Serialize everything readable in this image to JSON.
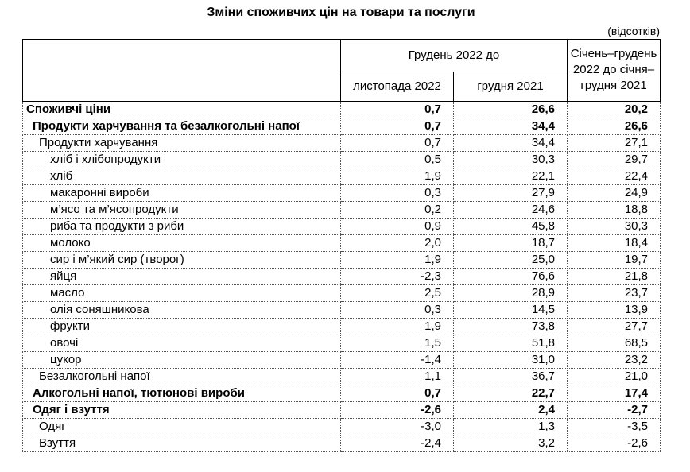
{
  "title": "Зміни споживчих цін на товари та послуги",
  "unit_note": "(відсотків)",
  "table": {
    "header": {
      "group": "Грудень 2022 до",
      "sub1": "листопада 2022",
      "sub2": "грудня 2021",
      "period": "Січень–грудень 2022 до січня–грудня 2021"
    },
    "rows": [
      {
        "label": "Споживчі ціни",
        "indent": 0,
        "bold": true,
        "values": [
          "0,7",
          "26,6",
          "20,2"
        ]
      },
      {
        "label": "Продукти харчування та безалкогольні напої",
        "indent": 1,
        "bold": true,
        "values": [
          "0,7",
          "34,4",
          "26,6"
        ]
      },
      {
        "label": "Продукти харчування",
        "indent": 2,
        "bold": false,
        "values": [
          "0,7",
          "34,4",
          "27,1"
        ]
      },
      {
        "label": "хліб і хлібопродукти",
        "indent": 3,
        "bold": false,
        "values": [
          "0,5",
          "30,3",
          "29,7"
        ]
      },
      {
        "label": "хліб",
        "indent": 3,
        "bold": false,
        "values": [
          "1,9",
          "22,1",
          "22,4"
        ]
      },
      {
        "label": "макаронні вироби",
        "indent": 3,
        "bold": false,
        "values": [
          "0,3",
          "27,9",
          "24,9"
        ]
      },
      {
        "label": "м’ясо та м’ясопродукти",
        "indent": 3,
        "bold": false,
        "values": [
          "0,2",
          "24,6",
          "18,8"
        ]
      },
      {
        "label": "риба та продукти з риби",
        "indent": 3,
        "bold": false,
        "values": [
          "0,9",
          "45,8",
          "30,3"
        ]
      },
      {
        "label": "молоко",
        "indent": 3,
        "bold": false,
        "values": [
          "2,0",
          "18,7",
          "18,4"
        ]
      },
      {
        "label": "сир і м’який сир (творог)",
        "indent": 3,
        "bold": false,
        "values": [
          "1,9",
          "25,0",
          "19,7"
        ]
      },
      {
        "label": "яйця",
        "indent": 3,
        "bold": false,
        "values": [
          "-2,3",
          "76,6",
          "21,8"
        ]
      },
      {
        "label": "масло",
        "indent": 3,
        "bold": false,
        "values": [
          "2,5",
          "28,9",
          "23,7"
        ]
      },
      {
        "label": "олія соняшникова",
        "indent": 3,
        "bold": false,
        "values": [
          "0,3",
          "14,5",
          "13,9"
        ]
      },
      {
        "label": "фрукти",
        "indent": 3,
        "bold": false,
        "values": [
          "1,9",
          "73,8",
          "27,7"
        ]
      },
      {
        "label": "овочі",
        "indent": 3,
        "bold": false,
        "values": [
          "1,5",
          "51,8",
          "68,5"
        ]
      },
      {
        "label": "цукор",
        "indent": 3,
        "bold": false,
        "values": [
          "-1,4",
          "31,0",
          "23,2"
        ]
      },
      {
        "label": "Безалкогольні напої",
        "indent": 2,
        "bold": false,
        "values": [
          "1,1",
          "36,7",
          "21,0"
        ]
      },
      {
        "label": "Алкогольні напої, тютюнові вироби",
        "indent": 1,
        "bold": true,
        "values": [
          "0,7",
          "22,7",
          "17,4"
        ]
      },
      {
        "label": "Одяг і взуття",
        "indent": 1,
        "bold": true,
        "values": [
          "-2,6",
          "2,4",
          "-2,7"
        ]
      },
      {
        "label": "Одяг",
        "indent": 2,
        "bold": false,
        "values": [
          "-3,0",
          "1,3",
          "-3,5"
        ]
      },
      {
        "label": "Взуття",
        "indent": 2,
        "bold": false,
        "values": [
          "-2,4",
          "3,2",
          "-2,6"
        ]
      }
    ]
  }
}
